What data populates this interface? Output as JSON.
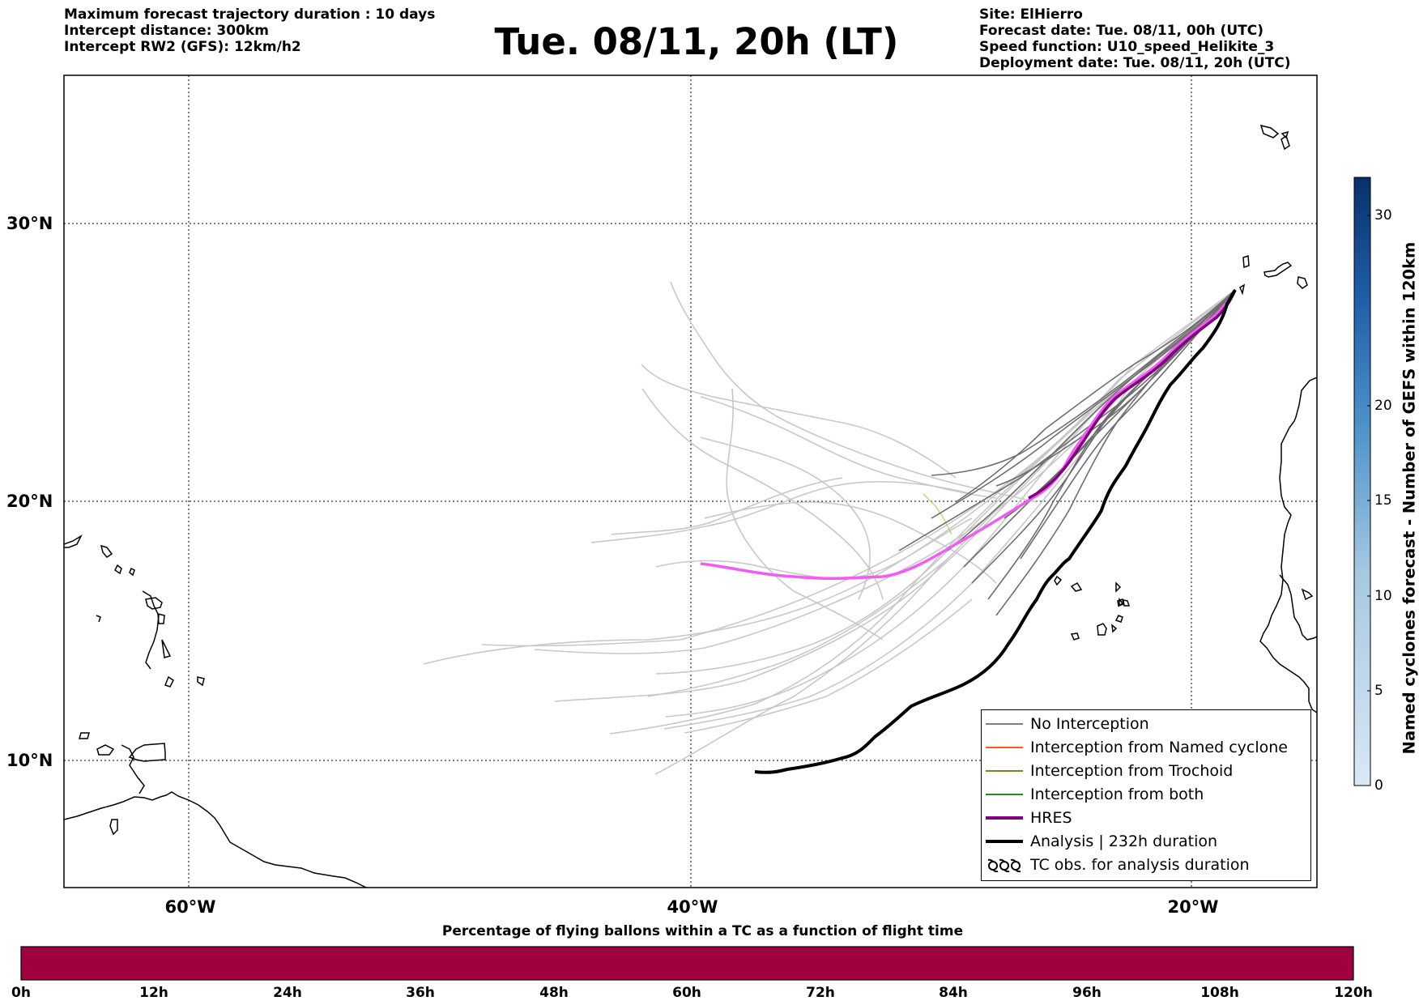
{
  "header": {
    "left_lines": [
      "Maximum forecast trajectory duration : 10 days",
      "Intercept distance: 300km",
      "Intercept RW2 (GFS):  12km/h2"
    ],
    "title": "Tue. 08/11, 20h (LT)",
    "right_lines": [
      "Site: ElHierro",
      "Forecast date: Tue. 08/11, 00h (UTC)",
      "Speed function: U10_speed_Helikite_3",
      "Deployment date: Tue. 08/11, 20h (UTC)"
    ]
  },
  "map": {
    "lon_range": [
      -65,
      -15
    ],
    "lat_range": [
      5,
      34
    ],
    "lon_labels": [
      "60°W",
      "40°W",
      "20°W"
    ],
    "lat_labels": [
      "30°N",
      "20°N",
      "10°N"
    ],
    "gridlines": true,
    "colors": {
      "no_interception": "#808080",
      "named_cyclone": "#ff5a1e",
      "trochoid": "#808020",
      "both": "#228b22",
      "hres": "#800080",
      "analysis": "#000000",
      "light_trajectories": "#c8c8c8",
      "coastline": "#000000"
    }
  },
  "legend": {
    "items": [
      {
        "label": "No Interception",
        "color": "#808080",
        "style": "thin"
      },
      {
        "label": "Interception from Named cyclone",
        "color": "#ff5a1e",
        "style": "thin"
      },
      {
        "label": "Interception from Trochoid",
        "color": "#808020",
        "style": "thin"
      },
      {
        "label": "Interception from both",
        "color": "#228b22",
        "style": "thin"
      },
      {
        "label": "HRES",
        "color": "#800080",
        "style": "thick"
      },
      {
        "label": "Analysis | 232h duration",
        "color": "#000000",
        "style": "thick"
      },
      {
        "label": "TC obs. for analysis duration",
        "color": "#000000",
        "style": "symbol"
      }
    ]
  },
  "right_colorbar": {
    "title": "Named cyclones forecast - Number of GEFS within 120km",
    "ticks": [
      "0",
      "5",
      "10",
      "15",
      "20",
      "30"
    ],
    "range": [
      0,
      32
    ],
    "color_low": "#d9e8f5",
    "color_high": "#08306b"
  },
  "bottom_colorbar": {
    "title": "Percentage of flying ballons within a TC as a function of flight time",
    "ticks": [
      "0h",
      "12h",
      "24h",
      "36h",
      "48h",
      "60h",
      "72h",
      "84h",
      "96h",
      "108h",
      "120h"
    ],
    "fill_color": "#a00040"
  },
  "chart_data": {
    "type": "trajectory map",
    "hres_track": [
      [
        -36.3,
        17.6
      ],
      [
        -34,
        17.1
      ],
      [
        -32,
        17.0
      ],
      [
        -30,
        17.3
      ],
      [
        -28.5,
        18.1
      ],
      [
        -27,
        19.0
      ],
      [
        -25.5,
        20.2
      ],
      [
        -24.5,
        21.6
      ],
      [
        -23.2,
        23.2
      ],
      [
        -21.5,
        24.3
      ],
      [
        -19.5,
        25.7
      ],
      [
        -18.1,
        27.2
      ]
    ],
    "analysis_track": [
      [
        -37.5,
        9.6
      ],
      [
        -35.8,
        9.8
      ],
      [
        -33.5,
        10.3
      ],
      [
        -31.3,
        11.7
      ],
      [
        -29.0,
        12.5
      ],
      [
        -27.5,
        13.8
      ],
      [
        -26,
        15.8
      ],
      [
        -24.8,
        17.1
      ],
      [
        -23.5,
        18.6
      ],
      [
        -22.5,
        20.3
      ],
      [
        -21.3,
        22.6
      ],
      [
        -19.8,
        24.6
      ],
      [
        -18.1,
        27.2
      ]
    ]
  }
}
